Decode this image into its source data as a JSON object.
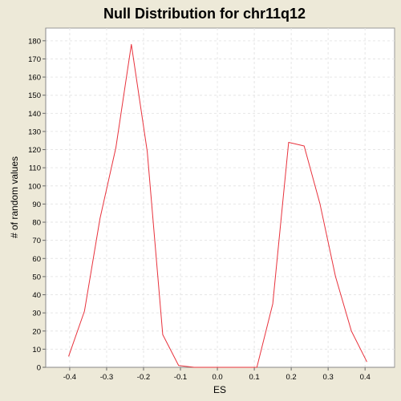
{
  "chart_data": {
    "type": "line",
    "title": "Null Distribution for chr11q12",
    "xlabel": "ES",
    "ylabel": "# of random values",
    "xlim": [
      -0.465,
      0.48
    ],
    "ylim": [
      0,
      187
    ],
    "x_ticks": [
      -0.4,
      -0.3,
      -0.2,
      -0.1,
      0.0,
      0.1,
      0.2,
      0.3,
      0.4
    ],
    "x_tick_labels": [
      "-0.4",
      "-0.3",
      "-0.2",
      "-0.1",
      "0.0",
      "0.1",
      "0.2",
      "0.3",
      "0.4"
    ],
    "y_ticks": [
      0,
      10,
      20,
      30,
      40,
      50,
      60,
      70,
      80,
      90,
      100,
      110,
      120,
      130,
      140,
      150,
      160,
      170,
      180
    ],
    "y_tick_labels": [
      "0",
      "10",
      "20",
      "30",
      "40",
      "50",
      "60",
      "70",
      "80",
      "90",
      "100",
      "110",
      "120",
      "130",
      "140",
      "150",
      "160",
      "170",
      "180"
    ],
    "grid": true,
    "legend": "none",
    "line_color": "#e8323c",
    "series": [
      {
        "x": [
          -0.403,
          -0.36,
          -0.318,
          -0.275,
          -0.233,
          -0.19,
          -0.148,
          -0.105,
          -0.063,
          -0.02,
          0.023,
          0.065,
          0.107,
          0.15,
          0.193,
          0.235,
          0.278,
          0.32,
          0.363,
          0.405
        ],
        "values": [
          6,
          31,
          82,
          121,
          178,
          119,
          18,
          1,
          0,
          0,
          0,
          0,
          0,
          35,
          124,
          122,
          90,
          50,
          20,
          3
        ]
      }
    ]
  }
}
